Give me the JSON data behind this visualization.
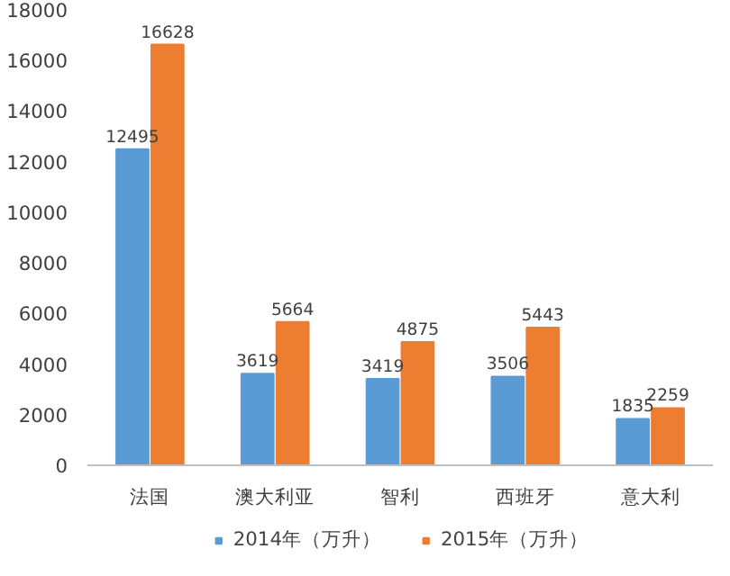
{
  "chart_data": {
    "type": "bar",
    "categories": [
      "法国",
      "澳大利亚",
      "智利",
      "西班牙",
      "意大利"
    ],
    "series": [
      {
        "name": "2014年（万升）",
        "color": "#5b9bd5",
        "values": [
          12495,
          3619,
          3419,
          3506,
          1835
        ]
      },
      {
        "name": "2015年（万升）",
        "color": "#ed7d31",
        "values": [
          16628,
          5664,
          4875,
          5443,
          2259
        ]
      }
    ],
    "ylim": [
      0,
      18000
    ],
    "yticks": [
      0,
      2000,
      4000,
      6000,
      8000,
      10000,
      12000,
      14000,
      16000,
      18000
    ],
    "data_labels": true,
    "grid": false,
    "legend": "bottom"
  }
}
